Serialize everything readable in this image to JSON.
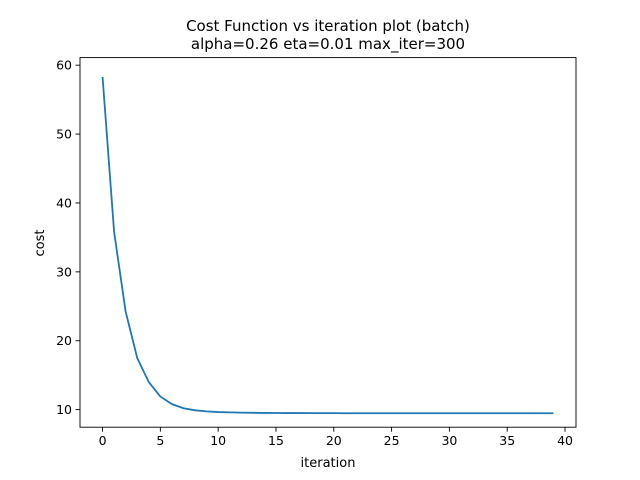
{
  "chart_data": {
    "type": "line",
    "title_line1": "Cost Function vs iteration plot (batch)",
    "title_line2": "alpha=0.26 eta=0.01 max_iter=300",
    "xlabel": "iteration",
    "ylabel": "cost",
    "xlim": [
      -1.95,
      40.95
    ],
    "ylim": [
      7.45,
      61.1
    ],
    "xticks": [
      0,
      5,
      10,
      15,
      20,
      25,
      30,
      35,
      40
    ],
    "yticks": [
      10,
      20,
      30,
      40,
      50,
      60
    ],
    "grid": false,
    "line_color": "#1f77b4",
    "series": [
      {
        "x": [
          0,
          1,
          2,
          3,
          4,
          5,
          6,
          7,
          8,
          9,
          10,
          11,
          12,
          13,
          14,
          15,
          16,
          17,
          18,
          19,
          20,
          21,
          22,
          23,
          24,
          25,
          26,
          27,
          28,
          29,
          30,
          31,
          32,
          33,
          34,
          35,
          36,
          37,
          38,
          39
        ],
        "values": [
          58.3,
          35.8,
          24.2,
          17.5,
          14.0,
          11.9,
          10.8,
          10.2,
          9.9,
          9.75,
          9.65,
          9.6,
          9.56,
          9.54,
          9.52,
          9.51,
          9.5,
          9.5,
          9.49,
          9.49,
          9.49,
          9.48,
          9.48,
          9.48,
          9.48,
          9.48,
          9.48,
          9.48,
          9.48,
          9.48,
          9.48,
          9.48,
          9.48,
          9.48,
          9.48,
          9.48,
          9.48,
          9.48,
          9.48,
          9.48
        ]
      }
    ]
  }
}
